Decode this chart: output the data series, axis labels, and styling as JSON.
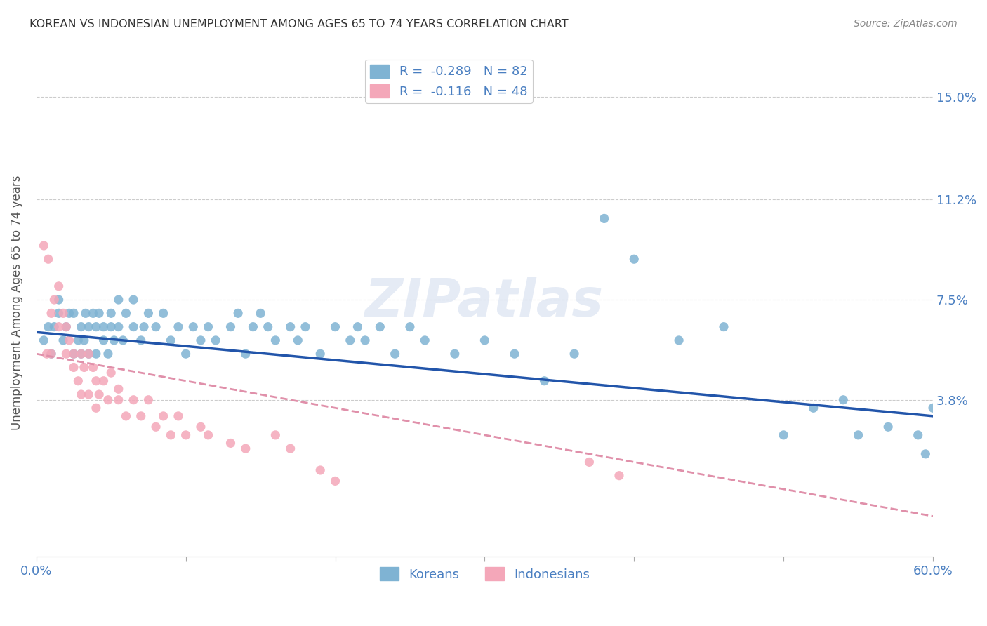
{
  "title": "KOREAN VS INDONESIAN UNEMPLOYMENT AMONG AGES 65 TO 74 YEARS CORRELATION CHART",
  "source": "Source: ZipAtlas.com",
  "ylabel": "Unemployment Among Ages 65 to 74 years",
  "korean_R": -0.289,
  "korean_N": 82,
  "indonesian_R": -0.116,
  "indonesian_N": 48,
  "xlim": [
    0.0,
    0.6
  ],
  "ylim": [
    -0.02,
    0.168
  ],
  "yticks": [
    0.038,
    0.075,
    0.112,
    0.15
  ],
  "ytick_labels": [
    "3.8%",
    "7.5%",
    "11.2%",
    "15.0%"
  ],
  "xticks": [
    0.0,
    0.1,
    0.2,
    0.3,
    0.4,
    0.5,
    0.6
  ],
  "xtick_labels_show": [
    "0.0%",
    "",
    "",
    "",
    "",
    "",
    "60.0%"
  ],
  "korean_color": "#7fb3d3",
  "indonesian_color": "#f4a7b9",
  "korean_line_color": "#2255aa",
  "indonesian_line_color": "#e090aa",
  "background_color": "#ffffff",
  "grid_color": "#cccccc",
  "title_color": "#333333",
  "axis_label_color": "#4a7fc1",
  "watermark": "ZIPatlas",
  "korean_line_start_y": 0.063,
  "korean_line_end_y": 0.032,
  "indonesian_line_start_y": 0.055,
  "indonesian_line_end_y": -0.005,
  "korean_points_x": [
    0.005,
    0.008,
    0.01,
    0.012,
    0.015,
    0.015,
    0.018,
    0.02,
    0.022,
    0.025,
    0.025,
    0.028,
    0.03,
    0.03,
    0.032,
    0.033,
    0.035,
    0.035,
    0.038,
    0.04,
    0.04,
    0.042,
    0.045,
    0.045,
    0.048,
    0.05,
    0.05,
    0.052,
    0.055,
    0.055,
    0.058,
    0.06,
    0.065,
    0.065,
    0.07,
    0.072,
    0.075,
    0.08,
    0.085,
    0.09,
    0.095,
    0.1,
    0.105,
    0.11,
    0.115,
    0.12,
    0.13,
    0.135,
    0.14,
    0.145,
    0.15,
    0.155,
    0.16,
    0.17,
    0.175,
    0.18,
    0.19,
    0.2,
    0.21,
    0.215,
    0.22,
    0.23,
    0.24,
    0.25,
    0.26,
    0.28,
    0.3,
    0.32,
    0.34,
    0.36,
    0.38,
    0.4,
    0.43,
    0.46,
    0.5,
    0.52,
    0.54,
    0.55,
    0.57,
    0.59,
    0.595,
    0.6
  ],
  "korean_points_y": [
    0.06,
    0.065,
    0.055,
    0.065,
    0.07,
    0.075,
    0.06,
    0.065,
    0.07,
    0.055,
    0.07,
    0.06,
    0.055,
    0.065,
    0.06,
    0.07,
    0.055,
    0.065,
    0.07,
    0.055,
    0.065,
    0.07,
    0.06,
    0.065,
    0.055,
    0.065,
    0.07,
    0.06,
    0.065,
    0.075,
    0.06,
    0.07,
    0.065,
    0.075,
    0.06,
    0.065,
    0.07,
    0.065,
    0.07,
    0.06,
    0.065,
    0.055,
    0.065,
    0.06,
    0.065,
    0.06,
    0.065,
    0.07,
    0.055,
    0.065,
    0.07,
    0.065,
    0.06,
    0.065,
    0.06,
    0.065,
    0.055,
    0.065,
    0.06,
    0.065,
    0.06,
    0.065,
    0.055,
    0.065,
    0.06,
    0.055,
    0.06,
    0.055,
    0.045,
    0.055,
    0.105,
    0.09,
    0.06,
    0.065,
    0.025,
    0.035,
    0.038,
    0.025,
    0.028,
    0.025,
    0.018,
    0.035
  ],
  "indonesian_points_x": [
    0.005,
    0.007,
    0.008,
    0.01,
    0.01,
    0.012,
    0.015,
    0.015,
    0.018,
    0.02,
    0.02,
    0.022,
    0.025,
    0.025,
    0.028,
    0.03,
    0.03,
    0.032,
    0.035,
    0.035,
    0.038,
    0.04,
    0.04,
    0.042,
    0.045,
    0.048,
    0.05,
    0.055,
    0.055,
    0.06,
    0.065,
    0.07,
    0.075,
    0.08,
    0.085,
    0.09,
    0.095,
    0.1,
    0.11,
    0.115,
    0.13,
    0.14,
    0.16,
    0.17,
    0.19,
    0.2,
    0.37,
    0.39
  ],
  "indonesian_points_y": [
    0.095,
    0.055,
    0.09,
    0.055,
    0.07,
    0.075,
    0.065,
    0.08,
    0.07,
    0.055,
    0.065,
    0.06,
    0.05,
    0.055,
    0.045,
    0.04,
    0.055,
    0.05,
    0.04,
    0.055,
    0.05,
    0.035,
    0.045,
    0.04,
    0.045,
    0.038,
    0.048,
    0.038,
    0.042,
    0.032,
    0.038,
    0.032,
    0.038,
    0.028,
    0.032,
    0.025,
    0.032,
    0.025,
    0.028,
    0.025,
    0.022,
    0.02,
    0.025,
    0.02,
    0.012,
    0.008,
    0.015,
    0.01
  ]
}
